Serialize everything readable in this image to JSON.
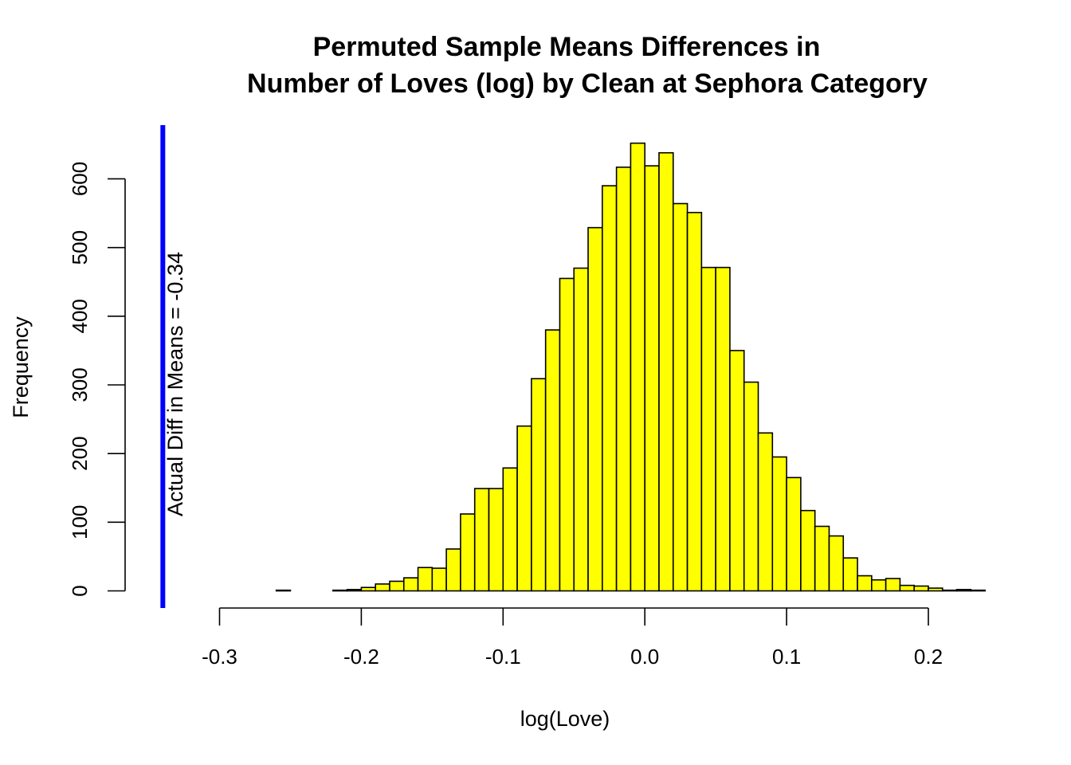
{
  "chart_data": {
    "type": "bar",
    "title_line1": "Permuted Sample Means Differences in",
    "title_line2": "Number of Loves (log) by Clean at Sephora Category",
    "xlabel": "log(Love)",
    "ylabel": "Frequency",
    "xlim": [
      -0.3,
      0.24
    ],
    "ylim": [
      0,
      680
    ],
    "x_ticks": [
      -0.3,
      -0.2,
      -0.1,
      0.0,
      0.1,
      0.2
    ],
    "x_tick_labels": [
      "-0.3",
      "-0.2",
      "-0.1",
      "0.0",
      "0.1",
      "0.2"
    ],
    "y_ticks": [
      0,
      100,
      200,
      300,
      400,
      500,
      600
    ],
    "y_tick_labels": [
      "0",
      "100",
      "200",
      "300",
      "400",
      "500",
      "600"
    ],
    "bin_width": 0.01,
    "bins": [
      {
        "x0": -0.26,
        "x1": -0.25,
        "count": 1
      },
      {
        "x0": -0.25,
        "x1": -0.24,
        "count": 0
      },
      {
        "x0": -0.24,
        "x1": -0.23,
        "count": 0
      },
      {
        "x0": -0.23,
        "x1": -0.22,
        "count": 0
      },
      {
        "x0": -0.22,
        "x1": -0.21,
        "count": 1
      },
      {
        "x0": -0.21,
        "x1": -0.2,
        "count": 2
      },
      {
        "x0": -0.2,
        "x1": -0.19,
        "count": 5
      },
      {
        "x0": -0.19,
        "x1": -0.18,
        "count": 10
      },
      {
        "x0": -0.18,
        "x1": -0.17,
        "count": 14
      },
      {
        "x0": -0.17,
        "x1": -0.16,
        "count": 19
      },
      {
        "x0": -0.16,
        "x1": -0.15,
        "count": 34
      },
      {
        "x0": -0.15,
        "x1": -0.14,
        "count": 33
      },
      {
        "x0": -0.14,
        "x1": -0.13,
        "count": 61
      },
      {
        "x0": -0.13,
        "x1": -0.12,
        "count": 112
      },
      {
        "x0": -0.12,
        "x1": -0.11,
        "count": 149
      },
      {
        "x0": -0.11,
        "x1": -0.1,
        "count": 149
      },
      {
        "x0": -0.1,
        "x1": -0.09,
        "count": 179
      },
      {
        "x0": -0.09,
        "x1": -0.08,
        "count": 240
      },
      {
        "x0": -0.08,
        "x1": -0.07,
        "count": 309
      },
      {
        "x0": -0.07,
        "x1": -0.06,
        "count": 380
      },
      {
        "x0": -0.06,
        "x1": -0.05,
        "count": 455
      },
      {
        "x0": -0.05,
        "x1": -0.04,
        "count": 470
      },
      {
        "x0": -0.04,
        "x1": -0.03,
        "count": 529
      },
      {
        "x0": -0.03,
        "x1": -0.02,
        "count": 590
      },
      {
        "x0": -0.02,
        "x1": -0.01,
        "count": 617
      },
      {
        "x0": -0.01,
        "x1": 0.0,
        "count": 652
      },
      {
        "x0": 0.0,
        "x1": 0.01,
        "count": 619
      },
      {
        "x0": 0.01,
        "x1": 0.02,
        "count": 638
      },
      {
        "x0": 0.02,
        "x1": 0.03,
        "count": 564
      },
      {
        "x0": 0.03,
        "x1": 0.04,
        "count": 551
      },
      {
        "x0": 0.04,
        "x1": 0.05,
        "count": 471
      },
      {
        "x0": 0.05,
        "x1": 0.06,
        "count": 471
      },
      {
        "x0": 0.06,
        "x1": 0.07,
        "count": 350
      },
      {
        "x0": 0.07,
        "x1": 0.08,
        "count": 304
      },
      {
        "x0": 0.08,
        "x1": 0.09,
        "count": 230
      },
      {
        "x0": 0.09,
        "x1": 0.1,
        "count": 195
      },
      {
        "x0": 0.1,
        "x1": 0.11,
        "count": 165
      },
      {
        "x0": 0.11,
        "x1": 0.12,
        "count": 117
      },
      {
        "x0": 0.12,
        "x1": 0.13,
        "count": 94
      },
      {
        "x0": 0.13,
        "x1": 0.14,
        "count": 80
      },
      {
        "x0": 0.14,
        "x1": 0.15,
        "count": 48
      },
      {
        "x0": 0.15,
        "x1": 0.16,
        "count": 22
      },
      {
        "x0": 0.16,
        "x1": 0.17,
        "count": 16
      },
      {
        "x0": 0.17,
        "x1": 0.18,
        "count": 18
      },
      {
        "x0": 0.18,
        "x1": 0.19,
        "count": 8
      },
      {
        "x0": 0.19,
        "x1": 0.2,
        "count": 7
      },
      {
        "x0": 0.2,
        "x1": 0.21,
        "count": 4
      },
      {
        "x0": 0.21,
        "x1": 0.22,
        "count": 1
      },
      {
        "x0": 0.22,
        "x1": 0.23,
        "count": 2
      },
      {
        "x0": 0.23,
        "x1": 0.24,
        "count": 1
      }
    ],
    "reference_line": {
      "x": -0.34,
      "label": "Actual Diff in Means = -0.34",
      "color": "#0000ff"
    },
    "bar_fill": "#ffff00",
    "bar_stroke": "#000000",
    "grid": false,
    "legend": "none"
  }
}
